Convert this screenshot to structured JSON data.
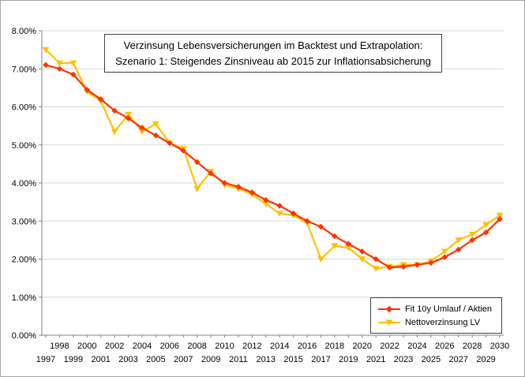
{
  "chart_data": {
    "type": "line",
    "title_lines": [
      "Verzinsung Lebensversicherungen im Backtest und Extrapolation:",
      "Szenario 1: Steigendes Zinsniveau ab 2015 zur Inflationsabsicherung"
    ],
    "x": [
      1997,
      1998,
      1999,
      2000,
      2001,
      2002,
      2003,
      2004,
      2005,
      2006,
      2007,
      2008,
      2009,
      2010,
      2011,
      2012,
      2013,
      2014,
      2015,
      2016,
      2017,
      2018,
      2019,
      2020,
      2021,
      2022,
      2023,
      2024,
      2025,
      2026,
      2027,
      2028,
      2029,
      2030
    ],
    "series": [
      {
        "name": "Fit 10y Umlauf / Aktien",
        "color": "#FF3300",
        "marker": "diamond",
        "values": [
          7.1,
          7.0,
          6.85,
          6.45,
          6.2,
          5.9,
          5.7,
          5.45,
          5.25,
          5.05,
          4.85,
          4.55,
          4.25,
          4.0,
          3.9,
          3.75,
          3.55,
          3.4,
          3.2,
          3.0,
          2.85,
          2.6,
          2.4,
          2.2,
          2.0,
          1.78,
          1.8,
          1.85,
          1.9,
          2.05,
          2.25,
          2.5,
          2.7,
          3.05
        ]
      },
      {
        "name": "Nettoverzinsung LV",
        "color": "#FFC000",
        "marker": "triangle-down",
        "values": [
          7.5,
          7.15,
          7.15,
          6.4,
          6.15,
          5.35,
          5.8,
          5.35,
          5.55,
          5.05,
          4.9,
          3.85,
          4.3,
          3.95,
          3.85,
          3.7,
          3.45,
          3.2,
          3.15,
          2.95,
          2.0,
          2.35,
          2.3,
          2.0,
          1.75,
          1.8,
          1.85,
          1.85,
          1.95,
          2.2,
          2.5,
          2.65,
          2.9,
          3.15
        ]
      }
    ],
    "ylim": [
      0,
      8
    ],
    "ytick_step": 1,
    "ytick_labels": [
      "0.00%",
      "1.00%",
      "2.00%",
      "3.00%",
      "4.00%",
      "5.00%",
      "6.00%",
      "7.00%",
      "8.00%"
    ],
    "grid": "horizontal",
    "legend_position": "inside-bottom-right",
    "background": "#FFFFFF",
    "gridline_color": "#D8D8D8",
    "axis_color": "#808080",
    "text_color": "#000000"
  }
}
